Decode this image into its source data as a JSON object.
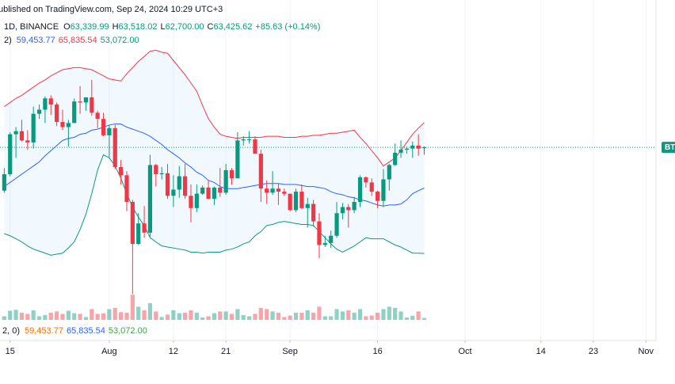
{
  "chart_data": {
    "type": "candlestick",
    "watermark": "ublished on TradingView.com, Sep 24, 2024 10:29 UTC+3",
    "interval": "1D, BINANCE",
    "ohlc_legend": [
      {
        "key": "O",
        "value": "63,339.99"
      },
      {
        "key": "H",
        "value": "63,518.02"
      },
      {
        "key": "L",
        "value": "62,700.00"
      },
      {
        "key": "C",
        "value": "63,425.62"
      }
    ],
    "change": "+85.63 (+0.14%)",
    "legend_color": "#089981",
    "bands_legend": {
      "prefix": "2)",
      "items": [
        {
          "value": "59,453.77",
          "color": "#2962ff"
        },
        {
          "value": "65,835.54",
          "color": "#f23645"
        },
        {
          "value": "53,072.00",
          "color": "#089981"
        }
      ]
    },
    "volume_legend": {
      "prefix": "2, 0)",
      "items": [
        {
          "value": "59,453.77",
          "color": "#ff6d00"
        },
        {
          "value": "65,835.54",
          "color": "#2962ff"
        },
        {
          "value": "53,072.00",
          "color": "#43a047"
        }
      ]
    },
    "price_label": "BTC",
    "x": [
      "2024-07-14",
      "2024-07-15",
      "2024-07-16",
      "2024-07-17",
      "2024-07-18",
      "2024-07-19",
      "2024-07-20",
      "2024-07-21",
      "2024-07-22",
      "2024-07-23",
      "2024-07-24",
      "2024-07-25",
      "2024-07-26",
      "2024-07-27",
      "2024-07-28",
      "2024-07-29",
      "2024-07-30",
      "2024-07-31",
      "2024-08-01",
      "2024-08-02",
      "2024-08-03",
      "2024-08-04",
      "2024-08-05",
      "2024-08-06",
      "2024-08-07",
      "2024-08-08",
      "2024-08-09",
      "2024-08-10",
      "2024-08-11",
      "2024-08-12",
      "2024-08-13",
      "2024-08-14",
      "2024-08-15",
      "2024-08-16",
      "2024-08-17",
      "2024-08-18",
      "2024-08-19",
      "2024-08-20",
      "2024-08-21",
      "2024-08-22",
      "2024-08-23",
      "2024-08-24",
      "2024-08-25",
      "2024-08-26",
      "2024-08-27",
      "2024-08-28",
      "2024-08-29",
      "2024-08-30",
      "2024-08-31",
      "2024-09-01",
      "2024-09-02",
      "2024-09-03",
      "2024-09-04",
      "2024-09-05",
      "2024-09-06",
      "2024-09-07",
      "2024-09-08",
      "2024-09-09",
      "2024-09-10",
      "2024-09-11",
      "2024-09-12",
      "2024-09-13",
      "2024-09-14",
      "2024-09-15",
      "2024-09-16",
      "2024-09-17",
      "2024-09-18",
      "2024-09-19",
      "2024-09-20",
      "2024-09-21",
      "2024-09-22",
      "2024-09-23",
      "2024-09-24"
    ],
    "open": [
      59200,
      60800,
      64700,
      65000,
      64100,
      63900,
      66700,
      67100,
      68200,
      67600,
      65900,
      65400,
      65800,
      67900,
      67800,
      68300,
      66800,
      66200,
      64600,
      65300,
      61500,
      60700,
      58100,
      54000,
      56000,
      55100,
      61700,
      60800,
      60900,
      58700,
      59300,
      60600,
      58700,
      57500,
      58900,
      59500,
      58400,
      59500,
      59000,
      61200,
      60400,
      64100,
      64200,
      64200,
      62800,
      59400,
      59000,
      59400,
      59100,
      58900,
      57300,
      59100,
      57500,
      57900,
      56200,
      53900,
      54100,
      54800,
      57000,
      57600,
      57300,
      58100,
      60500,
      60000,
      59100,
      58200,
      60300,
      61700,
      62900,
      63200,
      63300,
      63600,
      63339.99
    ],
    "high": [
      61400,
      64900,
      65400,
      66100,
      65100,
      67400,
      67600,
      68400,
      68500,
      67800,
      67100,
      66100,
      68200,
      69400,
      68300,
      70000,
      67000,
      66800,
      65600,
      65600,
      62200,
      61100,
      58300,
      57000,
      57700,
      62700,
      61800,
      61500,
      61800,
      60700,
      61600,
      61800,
      59800,
      59800,
      59700,
      60200,
      59600,
      61400,
      61800,
      61400,
      64900,
      64500,
      65000,
      64500,
      63200,
      60200,
      61100,
      59900,
      59400,
      58900,
      59400,
      59800,
      58500,
      58300,
      57000,
      54800,
      55300,
      58100,
      58000,
      57900,
      58600,
      60700,
      60600,
      60400,
      59200,
      61300,
      61800,
      63800,
      64100,
      63500,
      64000,
      64700,
      63518.02
    ],
    "low": [
      59000,
      60600,
      62400,
      64000,
      63200,
      63300,
      66200,
      65800,
      66600,
      65500,
      65100,
      63500,
      65800,
      66700,
      67000,
      66500,
      65300,
      64500,
      62300,
      61300,
      59800,
      57200,
      49100,
      53900,
      54600,
      54700,
      59600,
      60300,
      58400,
      57600,
      58500,
      58400,
      56100,
      57100,
      58800,
      58400,
      57800,
      58600,
      58800,
      59800,
      60400,
      63600,
      63800,
      62800,
      58100,
      57900,
      58800,
      57800,
      58700,
      57200,
      57100,
      57400,
      55600,
      55700,
      52600,
      53700,
      53600,
      54600,
      56400,
      55600,
      57000,
      57600,
      59500,
      58700,
      57500,
      57600,
      59200,
      61600,
      62400,
      62800,
      62400,
      62600,
      62700.0
    ],
    "close": [
      60800,
      64700,
      65000,
      64100,
      63900,
      66700,
      67100,
      68200,
      67600,
      65900,
      65400,
      65800,
      67900,
      67800,
      68300,
      66800,
      66200,
      64600,
      65300,
      61500,
      60700,
      58100,
      54000,
      56000,
      55100,
      61700,
      60800,
      60900,
      58700,
      59300,
      60600,
      58700,
      57500,
      58900,
      59500,
      58400,
      59500,
      59000,
      61200,
      60400,
      64100,
      64200,
      64200,
      62800,
      59400,
      59000,
      59400,
      59100,
      58900,
      57300,
      59100,
      57500,
      57900,
      56200,
      53900,
      54100,
      54800,
      57000,
      57600,
      57300,
      58100,
      60500,
      60000,
      59100,
      58200,
      60300,
      61700,
      62900,
      63200,
      63300,
      63600,
      63300,
      63425.62
    ],
    "volume": [
      15000,
      38000,
      42000,
      30000,
      25000,
      40000,
      15000,
      20000,
      30000,
      35000,
      25000,
      38000,
      28000,
      25000,
      12000,
      45000,
      25000,
      27000,
      45000,
      50000,
      32000,
      30000,
      105000,
      55000,
      40000,
      70000,
      35000,
      12000,
      22000,
      40000,
      28000,
      30000,
      40000,
      30000,
      10000,
      15000,
      28000,
      35000,
      35000,
      25000,
      45000,
      20000,
      15000,
      25000,
      50000,
      45000,
      35000,
      30000,
      12000,
      18000,
      30000,
      30000,
      40000,
      30000,
      55000,
      15000,
      15000,
      45000,
      35000,
      40000,
      30000,
      45000,
      15000,
      18000,
      30000,
      45000,
      55000,
      50000,
      35000,
      10000,
      17000,
      35000,
      8000
    ],
    "bands": [
      {
        "color": "#f23645",
        "values": [
          67400,
          67800,
          68200,
          68500,
          68900,
          69300,
          69700,
          70000,
          70400,
          70700,
          71000,
          71100,
          71200,
          71200,
          71100,
          71000,
          70700,
          70400,
          70100,
          70000,
          69900,
          70600,
          71200,
          71800,
          72300,
          72800,
          72900,
          72700,
          72600,
          71900,
          71200,
          70500,
          69700,
          68900,
          67500,
          66200,
          65400,
          64700,
          64500,
          64400,
          64300,
          64400,
          64400,
          64400,
          64400,
          64500,
          64500,
          64500,
          64400,
          64400,
          64400,
          64500,
          64500,
          64600,
          64600,
          64700,
          64800,
          64800,
          64900,
          65000,
          65100,
          64400,
          63800,
          63100,
          62400,
          61600,
          62000,
          62400,
          63100,
          63900,
          64700,
          65300,
          65835.54
        ]
      },
      {
        "color": "#2962ff",
        "values": [
          59600,
          60000,
          60400,
          60800,
          61200,
          61600,
          62000,
          62600,
          63100,
          63600,
          64100,
          64300,
          64400,
          64700,
          64800,
          65100,
          65200,
          65400,
          65600,
          65700,
          65700,
          65400,
          65200,
          65000,
          64800,
          64500,
          64100,
          63700,
          63200,
          62800,
          62400,
          61900,
          61500,
          61000,
          60700,
          60200,
          60000,
          59600,
          59400,
          59400,
          59400,
          59500,
          59600,
          59700,
          59800,
          59900,
          59900,
          59900,
          59800,
          59800,
          59800,
          59700,
          59600,
          59600,
          59500,
          59400,
          59100,
          58900,
          58800,
          58600,
          58500,
          58300,
          58200,
          58000,
          57800,
          57700,
          57800,
          57800,
          57900,
          58300,
          58900,
          59200,
          59453.77
        ]
      },
      {
        "color": "#089981",
        "values": [
          55000,
          54800,
          54500,
          54200,
          53800,
          53500,
          53300,
          53100,
          52900,
          53000,
          53100,
          53600,
          54200,
          55400,
          56900,
          58900,
          61200,
          62700,
          62400,
          61600,
          60400,
          58900,
          57600,
          56600,
          55800,
          54600,
          54200,
          53800,
          53700,
          53600,
          53500,
          53400,
          53200,
          53200,
          53100,
          53200,
          53200,
          53200,
          53400,
          53500,
          53700,
          54000,
          54200,
          54800,
          55200,
          55800,
          55900,
          56100,
          56200,
          56100,
          56000,
          55900,
          55900,
          55800,
          55200,
          54600,
          54000,
          53500,
          53200,
          53500,
          53800,
          54200,
          54600,
          54500,
          54500,
          54500,
          54200,
          53900,
          53700,
          53400,
          53100,
          53100,
          53072.0
        ]
      }
    ],
    "band_fill": "#2196f3",
    "up_color": "#089981",
    "down_color": "#f23645",
    "xlim": [
      "2024-07-13",
      "2024-11-03"
    ],
    "xticks": [
      {
        "value": "2024-07-15",
        "label": "15"
      },
      {
        "value": "2024-08-01",
        "label": "Aug"
      },
      {
        "value": "2024-08-12",
        "label": "12"
      },
      {
        "value": "2024-08-21",
        "label": "21"
      },
      {
        "value": "2024-09-01",
        "label": "Sep"
      },
      {
        "value": "2024-09-16",
        "label": "16"
      },
      {
        "value": "2024-10-01",
        "label": "Oct"
      },
      {
        "value": "2024-10-14",
        "label": "14"
      },
      {
        "value": "2024-10-23",
        "label": "23"
      },
      {
        "value": "2024-11-01",
        "label": "Nov"
      }
    ],
    "ylim": [
      46900,
      77800
    ],
    "volume_lim": [
      0,
      330000
    ],
    "grid": true
  }
}
